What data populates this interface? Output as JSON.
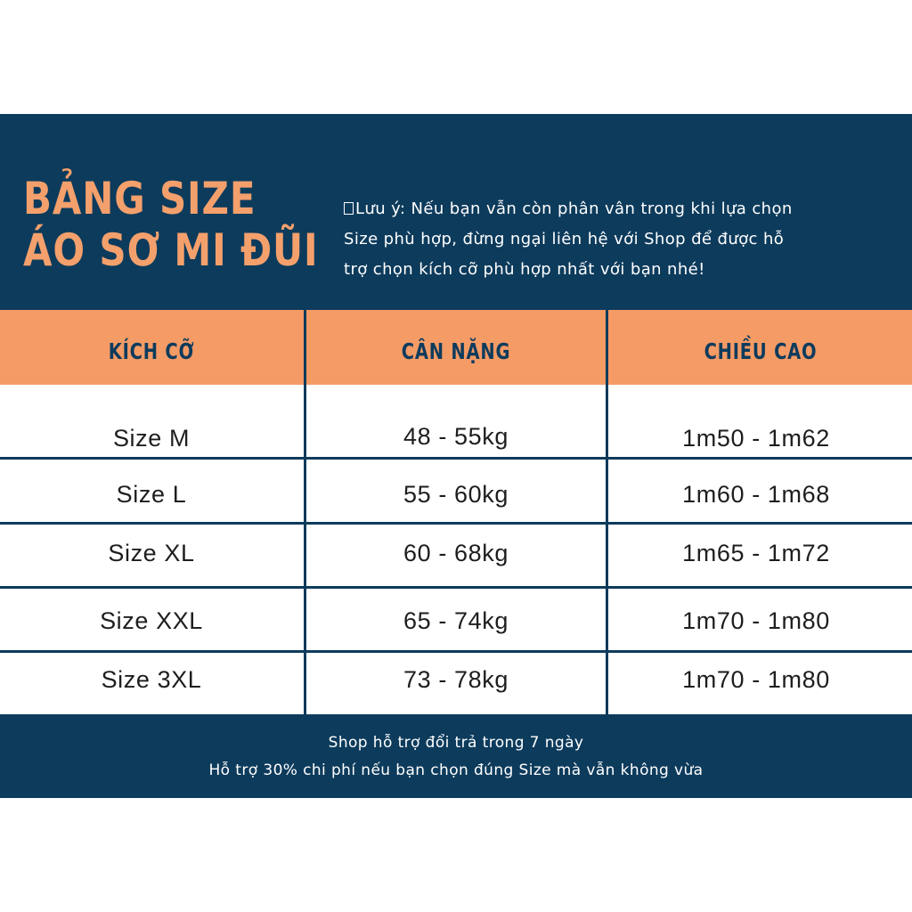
{
  "colors": {
    "navy": "#0d3b5c",
    "orange_header": "#f59b66",
    "title_orange": "#f4a06c",
    "text_dark": "#1e1e1e",
    "white": "#ffffff"
  },
  "header": {
    "title_line1": "BẢNG SIZE",
    "title_line2": "ÁO SƠ MI ĐŨI",
    "note_lines": [
      "Lưu ý: Nếu bạn vẫn còn phân vân trong khi lựa chọn",
      "Size phù hợp, đừng ngại liên hệ với Shop để được hỗ",
      "trợ chọn kích cỡ phù hợp nhất với bạn nhé!"
    ]
  },
  "table": {
    "columns": [
      "KÍCH CỠ",
      "CÂN NẶNG",
      "CHIỀU CAO"
    ],
    "rows": [
      {
        "size": "Size M",
        "weight": "48 - 55kg",
        "height": "1m50 - 1m62"
      },
      {
        "size": "Size L",
        "weight": "55 - 60kg",
        "height": "1m60 - 1m68"
      },
      {
        "size": "Size XL",
        "weight": "60 - 68kg",
        "height": "1m65 - 1m72"
      },
      {
        "size": "Size XXL",
        "weight": "65 - 74kg",
        "height": "1m70 - 1m80"
      },
      {
        "size": "Size 3XL",
        "weight": "73 - 78kg",
        "height": "1m70 - 1m80"
      }
    ]
  },
  "footer": {
    "line1": "Shop hỗ trợ đổi trả trong 7 ngày",
    "line2": "Hỗ trợ 30% chi phí nếu bạn chọn đúng Size mà vẫn không vừa"
  }
}
